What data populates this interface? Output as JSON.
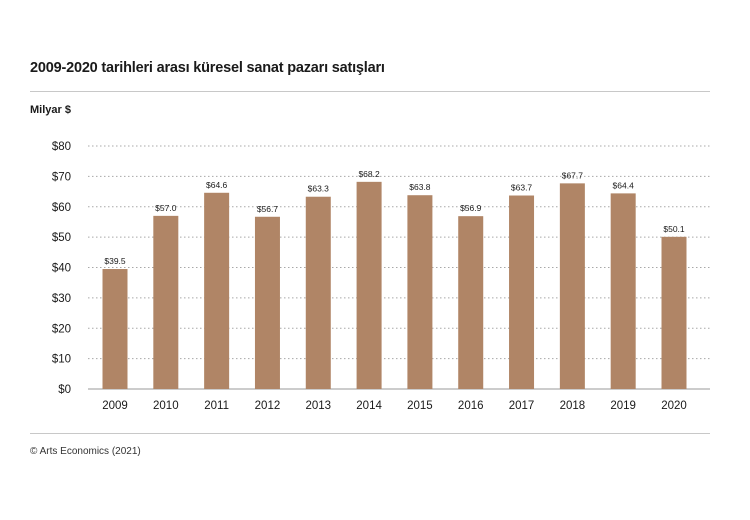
{
  "page": {
    "title": "2009-2020 tarihleri arası küresel sanat pazarı satışları",
    "source": "© Arts Economics (2021)"
  },
  "chart_data": {
    "type": "bar",
    "title": "2009-2020 tarihleri arası küresel sanat pazarı satışları",
    "ylabel": "Milyar $",
    "xlabel": "",
    "categories": [
      "2009",
      "2010",
      "2011",
      "2012",
      "2013",
      "2014",
      "2015",
      "2016",
      "2017",
      "2018",
      "2019",
      "2020"
    ],
    "values": [
      39.5,
      57.0,
      64.6,
      56.7,
      63.3,
      68.2,
      63.8,
      56.9,
      63.7,
      67.7,
      64.4,
      50.1
    ],
    "value_labels": [
      "$39.5",
      "$57.0",
      "$64.6",
      "$56.7",
      "$63.3",
      "$68.2",
      "$63.8",
      "$56.9",
      "$63.7",
      "$67.7",
      "$64.4",
      "$50.1"
    ],
    "ylim": [
      0,
      80
    ],
    "yticks": [
      0,
      10,
      20,
      30,
      40,
      50,
      60,
      70,
      80
    ],
    "ytick_labels": [
      "$0",
      "$10",
      "$20",
      "$30",
      "$40",
      "$50",
      "$60",
      "$70",
      "$80"
    ],
    "grid": true,
    "grid_style": "dotted",
    "bar_color": "#b08566"
  }
}
